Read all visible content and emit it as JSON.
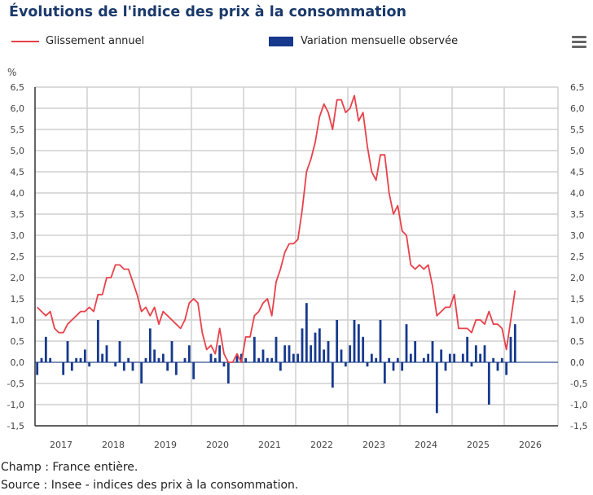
{
  "chart_data": {
    "type": "bar+line",
    "title": "Évolutions de l'indice des prix à la consommation",
    "ylabel": "%",
    "ylim": [
      -1.5,
      6.5
    ],
    "ytick_step": 0.5,
    "yticks": [
      "6,5",
      "6,0",
      "5,5",
      "5,0",
      "4,5",
      "4,0",
      "3,5",
      "3,0",
      "2,5",
      "2,0",
      "1,5",
      "1,0",
      "0,5",
      "0,0",
      "-0,5",
      "-1,0",
      "-1,5"
    ],
    "xticks": [
      "2017",
      "2018",
      "2019",
      "2020",
      "2021",
      "2022",
      "2023",
      "2024",
      "2025",
      "2026"
    ],
    "x_start": "2017-01",
    "x_end": "2026-03",
    "x_frequency": "monthly",
    "grid": true,
    "legend_position": "top",
    "series": [
      {
        "name": "Glissement annuel",
        "type": "line",
        "color": "#e8414a",
        "values": [
          1.3,
          1.2,
          1.1,
          1.2,
          0.8,
          0.7,
          0.7,
          0.9,
          1.0,
          1.1,
          1.2,
          1.2,
          1.3,
          1.2,
          1.6,
          1.6,
          2.0,
          2.0,
          2.3,
          2.3,
          2.2,
          2.2,
          1.9,
          1.6,
          1.2,
          1.3,
          1.1,
          1.3,
          0.9,
          1.2,
          1.1,
          1.0,
          0.9,
          0.8,
          1.0,
          1.4,
          1.5,
          1.4,
          0.7,
          0.3,
          0.4,
          0.2,
          0.8,
          0.2,
          0.0,
          0.0,
          0.2,
          0.0,
          0.6,
          0.6,
          1.1,
          1.2,
          1.4,
          1.5,
          1.1,
          1.9,
          2.2,
          2.6,
          2.8,
          2.8,
          2.9,
          3.6,
          4.5,
          4.8,
          5.2,
          5.8,
          6.1,
          5.9,
          5.5,
          6.2,
          6.2,
          5.9,
          6.0,
          6.3,
          5.7,
          5.9,
          5.1,
          4.5,
          4.3,
          4.9,
          4.9,
          4.0,
          3.5,
          3.7,
          3.1,
          3.0,
          2.3,
          2.2,
          2.3,
          2.2,
          2.3,
          1.8,
          1.1,
          1.2,
          1.3,
          1.3,
          1.6,
          0.8,
          0.8,
          0.8,
          0.7,
          1.0,
          1.0,
          0.9,
          1.2,
          0.9,
          0.9,
          0.8,
          0.3,
          1.0,
          1.7
        ]
      },
      {
        "name": "Variation mensuelle observée",
        "type": "bar",
        "color": "#16398d",
        "values": [
          -0.3,
          0.1,
          0.6,
          0.1,
          0.0,
          0.0,
          -0.3,
          0.5,
          -0.2,
          0.1,
          0.1,
          0.3,
          -0.1,
          0.0,
          1.0,
          0.2,
          0.4,
          0.0,
          -0.1,
          0.5,
          -0.2,
          0.1,
          -0.2,
          0.0,
          -0.5,
          0.1,
          0.8,
          0.3,
          0.1,
          0.2,
          -0.2,
          0.5,
          -0.3,
          0.0,
          0.1,
          0.4,
          -0.4,
          0.0,
          0.0,
          0.0,
          0.2,
          0.1,
          0.4,
          -0.1,
          -0.5,
          0.0,
          0.2,
          0.2,
          0.1,
          0.0,
          0.6,
          0.1,
          0.3,
          0.1,
          0.1,
          0.6,
          -0.2,
          0.4,
          0.4,
          0.2,
          0.2,
          0.8,
          1.4,
          0.4,
          0.7,
          0.8,
          0.3,
          0.5,
          -0.6,
          1.0,
          0.3,
          -0.1,
          0.4,
          1.0,
          0.9,
          0.6,
          -0.1,
          0.2,
          0.1,
          1.0,
          -0.5,
          0.1,
          -0.2,
          0.1,
          -0.2,
          0.9,
          0.2,
          0.5,
          0.0,
          0.1,
          0.2,
          0.5,
          -1.2,
          0.3,
          -0.2,
          0.2,
          0.2,
          0.0,
          0.2,
          0.6,
          -0.1,
          0.4,
          0.2,
          0.4,
          -1.0,
          0.1,
          -0.2,
          0.1,
          -0.3,
          0.6,
          0.9
        ]
      }
    ]
  },
  "legend": {
    "line_label": "Glissement annuel",
    "bar_label": "Variation mensuelle observée"
  },
  "menu_icon": "hamburger-menu-icon",
  "footer": {
    "champ": "Champ : France entière.",
    "source": "Source : Insee - indices des prix à la consommation."
  }
}
